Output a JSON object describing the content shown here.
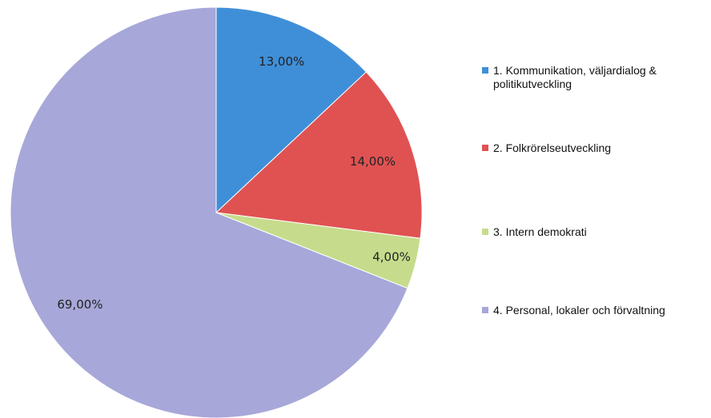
{
  "chart_data": {
    "type": "pie",
    "categories": [
      "1. Kommunikation, väljardialog & politikutveckling",
      "2. Folkrörelseutveckling",
      "3. Intern demokrati",
      "4. Personal, lokaler och förvaltning"
    ],
    "values": [
      13,
      14,
      4,
      69
    ],
    "value_labels": [
      "13,00%",
      "14,00%",
      "4,00%",
      "69,00%"
    ],
    "colors": [
      "#3f8fd8",
      "#e05252",
      "#c6dc8c",
      "#a7a7d9"
    ],
    "legend": "right"
  }
}
